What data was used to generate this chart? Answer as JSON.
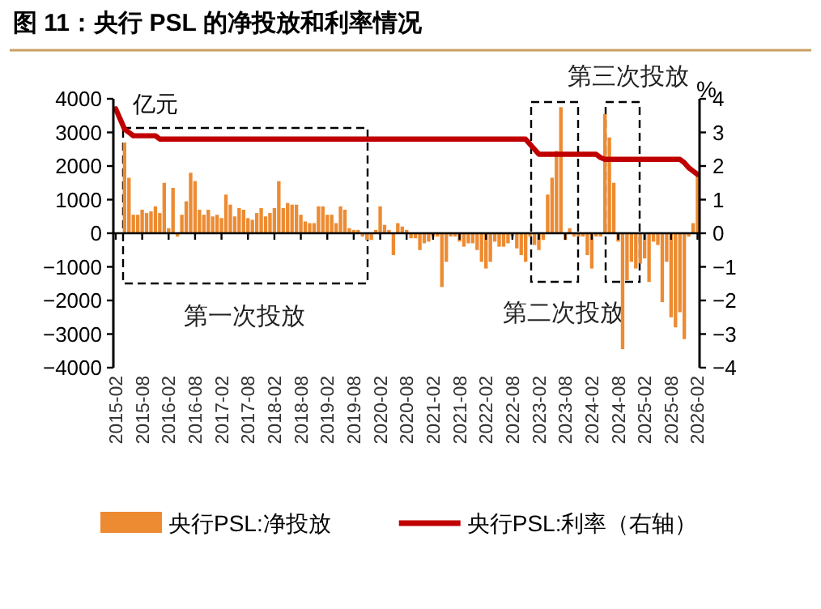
{
  "chart_data": {
    "type": "bar",
    "title": "图 11：央行 PSL 的净投放和利率情况",
    "ylabel": "亿元",
    "y2label": "%",
    "x": [
      "2015-02",
      "2015-03",
      "2015-04",
      "2015-05",
      "2015-06",
      "2015-07",
      "2015-08",
      "2015-09",
      "2015-10",
      "2015-11",
      "2015-12",
      "2016-01",
      "2016-02",
      "2016-03",
      "2016-04",
      "2016-05",
      "2016-06",
      "2016-07",
      "2016-08",
      "2016-09",
      "2016-10",
      "2016-11",
      "2016-12",
      "2017-01",
      "2017-02",
      "2017-03",
      "2017-04",
      "2017-05",
      "2017-06",
      "2017-07",
      "2017-08",
      "2017-09",
      "2017-10",
      "2017-11",
      "2017-12",
      "2018-01",
      "2018-02",
      "2018-03",
      "2018-04",
      "2018-05",
      "2018-06",
      "2018-07",
      "2018-08",
      "2018-09",
      "2018-10",
      "2018-11",
      "2018-12",
      "2019-01",
      "2019-02",
      "2019-03",
      "2019-04",
      "2019-05",
      "2019-06",
      "2019-07",
      "2019-08",
      "2019-09",
      "2019-10",
      "2019-11",
      "2019-12",
      "2020-01",
      "2020-02",
      "2020-03",
      "2020-04",
      "2020-05",
      "2020-06",
      "2020-07",
      "2020-08",
      "2020-09",
      "2020-10",
      "2020-11",
      "2020-12",
      "2021-01",
      "2021-02",
      "2021-03",
      "2021-04",
      "2021-05",
      "2021-06",
      "2021-07",
      "2021-08",
      "2021-09",
      "2021-10",
      "2021-11",
      "2021-12",
      "2022-01",
      "2022-02",
      "2022-03",
      "2022-04",
      "2022-05",
      "2022-06",
      "2022-07",
      "2022-08",
      "2022-09",
      "2022-10",
      "2022-11",
      "2022-12",
      "2023-01",
      "2023-02",
      "2023-03",
      "2023-04",
      "2023-05",
      "2023-06",
      "2023-07",
      "2023-08",
      "2023-09",
      "2023-10",
      "2023-11",
      "2023-12",
      "2024-01",
      "2024-02",
      "2024-03",
      "2024-04",
      "2024-05",
      "2024-06",
      "2024-07",
      "2024-08",
      "2024-09",
      "2024-10",
      "2024-11",
      "2024-12",
      "2025-01",
      "2025-02",
      "2025-03",
      "2025-04",
      "2025-05",
      "2025-06",
      "2025-07",
      "2025-08",
      "2025-09",
      "2025-10",
      "2025-11",
      "2025-12",
      "2026-01",
      "2026-02"
    ],
    "series": [
      {
        "name": "央行PSL:净投放",
        "color": "#ed8b32",
        "values": [
          0,
          0,
          2700,
          1650,
          550,
          550,
          700,
          600,
          650,
          800,
          600,
          1500,
          150,
          1350,
          -100,
          550,
          950,
          1800,
          1550,
          700,
          550,
          700,
          500,
          550,
          450,
          1150,
          850,
          500,
          750,
          700,
          450,
          400,
          600,
          750,
          500,
          600,
          750,
          1550,
          750,
          900,
          850,
          850,
          550,
          350,
          300,
          300,
          800,
          800,
          550,
          550,
          300,
          800,
          700,
          150,
          100,
          100,
          -100,
          -200,
          -200,
          100,
          800,
          250,
          100,
          -650,
          300,
          200,
          100,
          -150,
          -150,
          -500,
          -300,
          -250,
          -100,
          -100,
          -1600,
          -850,
          -100,
          -100,
          -250,
          -400,
          -300,
          -300,
          -500,
          -850,
          -1050,
          -850,
          -250,
          -400,
          -400,
          -300,
          -100,
          -450,
          -650,
          -850,
          -100,
          -350,
          -500,
          -200,
          1150,
          1650,
          2450,
          3750,
          -200,
          150,
          -100,
          -100,
          -100,
          -650,
          -1050,
          -100,
          -100,
          3550,
          2850,
          1500,
          -250,
          -3450,
          -1400,
          -850,
          -1050,
          -900,
          -750,
          -1450,
          -250,
          -350,
          -2050,
          -850,
          -2500,
          -2800,
          -2350,
          -3150,
          -100,
          300,
          1700
        ]
      },
      {
        "name": "央行PSL:利率（右轴）",
        "type": "line",
        "axis": "y2",
        "color": "#c00000",
        "values": [
          3.7,
          3.4,
          3.1,
          3.0,
          2.9,
          2.9,
          2.9,
          2.9,
          2.9,
          2.9,
          2.8,
          2.8,
          2.8,
          2.8,
          2.8,
          2.8,
          2.8,
          2.8,
          2.8,
          2.8,
          2.8,
          2.8,
          2.8,
          2.8,
          2.8,
          2.8,
          2.8,
          2.8,
          2.8,
          2.8,
          2.8,
          2.8,
          2.8,
          2.8,
          2.8,
          2.8,
          2.8,
          2.8,
          2.8,
          2.8,
          2.8,
          2.8,
          2.8,
          2.8,
          2.8,
          2.8,
          2.8,
          2.8,
          2.8,
          2.8,
          2.8,
          2.8,
          2.8,
          2.8,
          2.8,
          2.8,
          2.8,
          2.8,
          2.8,
          2.8,
          2.8,
          2.8,
          2.8,
          2.8,
          2.8,
          2.8,
          2.8,
          2.8,
          2.8,
          2.8,
          2.8,
          2.8,
          2.8,
          2.8,
          2.8,
          2.8,
          2.8,
          2.8,
          2.8,
          2.8,
          2.8,
          2.8,
          2.8,
          2.8,
          2.8,
          2.8,
          2.8,
          2.8,
          2.8,
          2.8,
          2.8,
          2.8,
          2.8,
          2.8,
          2.65,
          2.5,
          2.35,
          2.35,
          2.35,
          2.35,
          2.35,
          2.35,
          2.35,
          2.35,
          2.35,
          2.35,
          2.35,
          2.35,
          2.35,
          2.35,
          2.25,
          2.2,
          2.2,
          2.2,
          2.2,
          2.2,
          2.2,
          2.2,
          2.2,
          2.2,
          2.2,
          2.2,
          2.2,
          2.2,
          2.2,
          2.2,
          2.2,
          2.2,
          2.2,
          2.1,
          1.95,
          1.85,
          1.75
        ]
      }
    ],
    "xlim": [
      "2015-01-15",
      "2026-02-15"
    ],
    "xticks": [
      "2015-02",
      "2015-08",
      "2016-02",
      "2016-08",
      "2017-02",
      "2017-08",
      "2018-02",
      "2018-08",
      "2019-02",
      "2019-08",
      "2020-02",
      "2020-08",
      "2021-02",
      "2021-08",
      "2022-02",
      "2022-08",
      "2023-02",
      "2023-08",
      "2024-02",
      "2024-08",
      "2025-02",
      "2025-08",
      "2026-02"
    ],
    "ylim": [
      -4000,
      4000
    ],
    "yticks": [
      -4000,
      -3000,
      -2000,
      -1000,
      0,
      1000,
      2000,
      3000,
      4000
    ],
    "y2lim": [
      -4,
      4
    ],
    "y2ticks": [
      -4,
      -3,
      -2,
      -1,
      0,
      1,
      2,
      3,
      4
    ],
    "annotations": [
      "第一次投放",
      "第二次投放",
      "第三次投放"
    ],
    "legend": "bottom"
  }
}
